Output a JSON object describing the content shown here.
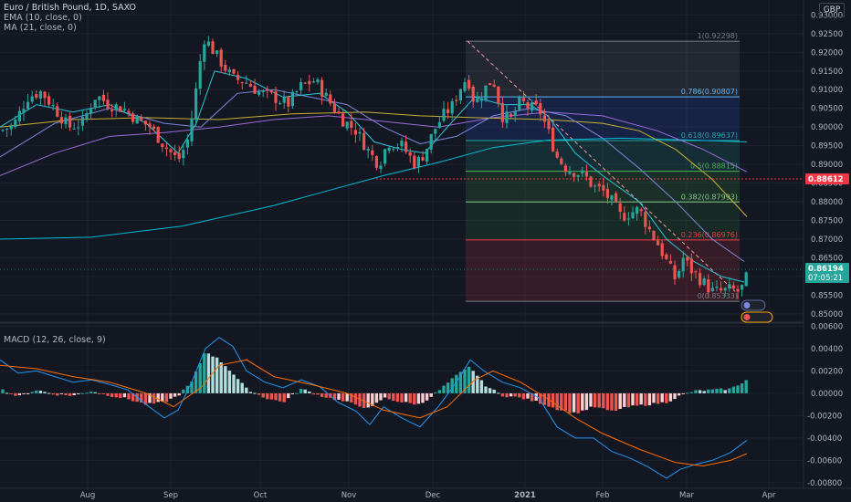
{
  "legend": {
    "title": "Euro / British Pound, 1D, SAXO",
    "ema": "EMA (10, close, 0)",
    "ma": "MA (21, close, 0)",
    "macd": "MACD (12, 26, close, 9)"
  },
  "currency_label": "GBP",
  "price_axis": {
    "ticks": [
      "0.93000",
      "0.92500",
      "0.92000",
      "0.91500",
      "0.91000",
      "0.90500",
      "0.90000",
      "0.89500",
      "0.89000",
      "0.88500",
      "0.88000",
      "0.87500",
      "0.87000",
      "0.86500",
      "0.86000",
      "0.85500",
      "0.85000"
    ],
    "current_price": "0.86194",
    "countdown": "07:05:21",
    "level_tag": "0.88612"
  },
  "macd_axis": {
    "ticks": [
      "0.00600",
      "0.00400",
      "0.00200",
      "0.00000",
      "-0.00200",
      "-0.00400",
      "-0.00600",
      "-0.00800"
    ]
  },
  "time_axis": {
    "ticks": [
      "Aug",
      "Sep",
      "Oct",
      "Nov",
      "Dec",
      "2021",
      "Feb",
      "Mar",
      "Apr"
    ]
  },
  "fib_levels": [
    {
      "label": "1(0.92298)",
      "value": 0.92298,
      "color": "#787b86"
    },
    {
      "label": "0.786(0.90807)",
      "value": 0.90807,
      "color": "#64b5f6"
    },
    {
      "label": "0.618(0.89637)",
      "value": 0.89637,
      "color": "#26a69a"
    },
    {
      "label": "0.5(0.88815)",
      "value": 0.88815,
      "color": "#4caf50"
    },
    {
      "label": "0.382(0.87993)",
      "value": 0.87993,
      "color": "#81c784"
    },
    {
      "label": "0.236(0.86976)",
      "value": 0.86976,
      "color": "#f23645"
    },
    {
      "label": "0(0.85333)",
      "value": 0.85333,
      "color": "#787b86"
    }
  ],
  "colors": {
    "background": "#131722",
    "grid": "#1e222d",
    "up": "#26a69a",
    "down": "#ef5350",
    "ema": "#7b8ae0",
    "ma": "#26c6da",
    "ma_long": "#c9b035",
    "ma_200": "#00bcd4",
    "macd_line": "#2196f3",
    "signal_line": "#ff6d00",
    "hist_up": "#26a69a",
    "hist_up_light": "#b2dfdb",
    "hist_down": "#ef5350",
    "hist_down_light": "#ffcdd2",
    "price_tag": "#26a69a",
    "level_tag": "#f23645"
  },
  "chart_data": {
    "type": "candlestick",
    "symbol": "Euro / British Pound, 1D, SAXO",
    "ylim": [
      0.848,
      0.934
    ],
    "macd_ylim": [
      -0.0085,
      0.0062
    ],
    "price_path": [
      [
        0,
        0.899
      ],
      [
        15,
        0.9005
      ],
      [
        30,
        0.908
      ],
      [
        45,
        0.9095
      ],
      [
        60,
        0.905
      ],
      [
        75,
        0.9
      ],
      [
        90,
        0.901
      ],
      [
        105,
        0.9085
      ],
      [
        120,
        0.906
      ],
      [
        135,
        0.905
      ],
      [
        150,
        0.902
      ],
      [
        165,
        0.9
      ],
      [
        180,
        0.895
      ],
      [
        195,
        0.891
      ],
      [
        205,
        0.896
      ],
      [
        212,
        0.905
      ],
      [
        218,
        0.916
      ],
      [
        224,
        0.924
      ],
      [
        232,
        0.921
      ],
      [
        240,
        0.918
      ],
      [
        255,
        0.913
      ],
      [
        270,
        0.912
      ],
      [
        285,
        0.909
      ],
      [
        300,
        0.908
      ],
      [
        315,
        0.906
      ],
      [
        330,
        0.911
      ],
      [
        345,
        0.9125
      ],
      [
        360,
        0.907
      ],
      [
        375,
        0.902
      ],
      [
        390,
        0.899
      ],
      [
        405,
        0.893
      ],
      [
        415,
        0.89
      ],
      [
        425,
        0.896
      ],
      [
        440,
        0.895
      ],
      [
        455,
        0.89
      ],
      [
        465,
        0.893
      ],
      [
        475,
        0.899
      ],
      [
        485,
        0.903
      ],
      [
        495,
        0.9055
      ],
      [
        505,
        0.911
      ],
      [
        512,
        0.9135
      ],
      [
        520,
        0.906
      ],
      [
        530,
        0.91
      ],
      [
        540,
        0.913
      ],
      [
        550,
        0.903
      ],
      [
        560,
        0.902
      ],
      [
        570,
        0.907
      ],
      [
        580,
        0.905
      ],
      [
        590,
        0.905
      ],
      [
        600,
        0.899
      ],
      [
        610,
        0.892
      ],
      [
        620,
        0.889
      ],
      [
        630,
        0.888
      ],
      [
        640,
        0.887
      ],
      [
        650,
        0.884
      ],
      [
        660,
        0.883
      ],
      [
        670,
        0.88
      ],
      [
        680,
        0.876
      ],
      [
        690,
        0.877
      ],
      [
        700,
        0.878
      ],
      [
        710,
        0.873
      ],
      [
        720,
        0.869
      ],
      [
        730,
        0.864
      ],
      [
        740,
        0.859
      ],
      [
        748,
        0.865
      ],
      [
        756,
        0.862
      ],
      [
        764,
        0.86
      ],
      [
        772,
        0.858
      ],
      [
        780,
        0.856
      ],
      [
        790,
        0.856
      ],
      [
        800,
        0.8565
      ],
      [
        808,
        0.856
      ],
      [
        815,
        0.8575
      ],
      [
        820,
        0.8619
      ]
    ],
    "ema_path": [
      [
        0,
        0.9
      ],
      [
        40,
        0.906
      ],
      [
        80,
        0.904
      ],
      [
        120,
        0.906
      ],
      [
        160,
        0.901
      ],
      [
        195,
        0.893
      ],
      [
        215,
        0.901
      ],
      [
        235,
        0.915
      ],
      [
        270,
        0.913
      ],
      [
        310,
        0.908
      ],
      [
        350,
        0.909
      ],
      [
        380,
        0.904
      ],
      [
        410,
        0.896
      ],
      [
        440,
        0.894
      ],
      [
        465,
        0.893
      ],
      [
        490,
        0.9
      ],
      [
        520,
        0.908
      ],
      [
        550,
        0.906
      ],
      [
        580,
        0.906
      ],
      [
        600,
        0.903
      ],
      [
        630,
        0.893
      ],
      [
        660,
        0.887
      ],
      [
        700,
        0.88
      ],
      [
        730,
        0.87
      ],
      [
        760,
        0.864
      ],
      [
        790,
        0.86
      ],
      [
        815,
        0.8585
      ]
    ],
    "ma21_path": [
      [
        0,
        0.892
      ],
      [
        60,
        0.901
      ],
      [
        120,
        0.905
      ],
      [
        180,
        0.901
      ],
      [
        220,
        0.9
      ],
      [
        260,
        0.909
      ],
      [
        300,
        0.91
      ],
      [
        340,
        0.908
      ],
      [
        380,
        0.906
      ],
      [
        420,
        0.9
      ],
      [
        460,
        0.8955
      ],
      [
        500,
        0.8975
      ],
      [
        540,
        0.903
      ],
      [
        580,
        0.905
      ],
      [
        620,
        0.903
      ],
      [
        660,
        0.897
      ],
      [
        700,
        0.889
      ],
      [
        740,
        0.88
      ],
      [
        780,
        0.87
      ],
      [
        815,
        0.864
      ]
    ],
    "ma_long_path": [
      [
        0,
        0.9
      ],
      [
        80,
        0.902
      ],
      [
        160,
        0.9025
      ],
      [
        240,
        0.902
      ],
      [
        320,
        0.9035
      ],
      [
        400,
        0.904
      ],
      [
        460,
        0.903
      ],
      [
        520,
        0.9025
      ],
      [
        600,
        0.902
      ],
      [
        660,
        0.901
      ],
      [
        700,
        0.899
      ],
      [
        740,
        0.894
      ],
      [
        780,
        0.886
      ],
      [
        818,
        0.876
      ]
    ],
    "ma200_path": [
      [
        0,
        0.87
      ],
      [
        100,
        0.8705
      ],
      [
        200,
        0.8735
      ],
      [
        300,
        0.879
      ],
      [
        360,
        0.883
      ],
      [
        420,
        0.887
      ],
      [
        480,
        0.8905
      ],
      [
        540,
        0.8945
      ],
      [
        600,
        0.8965
      ],
      [
        680,
        0.897
      ],
      [
        760,
        0.8965
      ],
      [
        818,
        0.896
      ]
    ],
    "ema_long_path": [
      [
        0,
        0.887
      ],
      [
        60,
        0.893
      ],
      [
        120,
        0.8975
      ],
      [
        180,
        0.8985
      ],
      [
        240,
        0.9
      ],
      [
        300,
        0.902
      ],
      [
        360,
        0.903
      ],
      [
        420,
        0.9015
      ],
      [
        480,
        0.9
      ],
      [
        540,
        0.9025
      ],
      [
        600,
        0.904
      ],
      [
        660,
        0.903
      ],
      [
        720,
        0.899
      ],
      [
        770,
        0.894
      ],
      [
        818,
        0.888
      ]
    ],
    "macd_path": [
      [
        0,
        0.003
      ],
      [
        20,
        0.0018
      ],
      [
        40,
        0.002
      ],
      [
        60,
        0.0015
      ],
      [
        80,
        0.001
      ],
      [
        100,
        0.0012
      ],
      [
        120,
        0.0008
      ],
      [
        140,
        0.0003
      ],
      [
        160,
        -0.001
      ],
      [
        180,
        -0.0022
      ],
      [
        195,
        -0.0015
      ],
      [
        210,
        0.001
      ],
      [
        225,
        0.004
      ],
      [
        240,
        0.005
      ],
      [
        255,
        0.0042
      ],
      [
        270,
        0.002
      ],
      [
        290,
        0.001
      ],
      [
        310,
        0.0005
      ],
      [
        330,
        0.0012
      ],
      [
        350,
        0.0006
      ],
      [
        370,
        -0.0008
      ],
      [
        390,
        -0.0016
      ],
      [
        405,
        -0.0028
      ],
      [
        420,
        -0.0012
      ],
      [
        440,
        -0.0022
      ],
      [
        460,
        -0.003
      ],
      [
        480,
        -0.0012
      ],
      [
        500,
        0.001
      ],
      [
        515,
        0.003
      ],
      [
        530,
        0.002
      ],
      [
        550,
        0.001
      ],
      [
        570,
        0.0005
      ],
      [
        590,
        -0.0004
      ],
      [
        610,
        -0.003
      ],
      [
        630,
        -0.004
      ],
      [
        650,
        -0.004
      ],
      [
        670,
        -0.0052
      ],
      [
        690,
        -0.0058
      ],
      [
        710,
        -0.0066
      ],
      [
        730,
        -0.0076
      ],
      [
        745,
        -0.0068
      ],
      [
        760,
        -0.0064
      ],
      [
        780,
        -0.006
      ],
      [
        800,
        -0.0053
      ],
      [
        818,
        -0.0042
      ]
    ],
    "signal_path": [
      [
        0,
        0.0025
      ],
      [
        40,
        0.0022
      ],
      [
        80,
        0.0015
      ],
      [
        120,
        0.001
      ],
      [
        160,
        0.0
      ],
      [
        190,
        -0.0012
      ],
      [
        220,
        0.0005
      ],
      [
        240,
        0.0025
      ],
      [
        270,
        0.003
      ],
      [
        300,
        0.0015
      ],
      [
        340,
        0.0008
      ],
      [
        380,
        0.0
      ],
      [
        420,
        -0.0015
      ],
      [
        460,
        -0.0022
      ],
      [
        490,
        -0.0012
      ],
      [
        520,
        0.0012
      ],
      [
        540,
        0.002
      ],
      [
        570,
        0.001
      ],
      [
        600,
        -0.0005
      ],
      [
        630,
        -0.0022
      ],
      [
        660,
        -0.0036
      ],
      [
        700,
        -0.005
      ],
      [
        740,
        -0.0062
      ],
      [
        770,
        -0.0065
      ],
      [
        800,
        -0.006
      ],
      [
        818,
        -0.0054
      ]
    ],
    "hist_path": [
      [
        0,
        0.0004
      ],
      [
        20,
        -0.0003
      ],
      [
        40,
        0.0003
      ],
      [
        60,
        -0.0001
      ],
      [
        80,
        -0.0002
      ],
      [
        100,
        0.0002
      ],
      [
        120,
        -0.0002
      ],
      [
        140,
        -0.0005
      ],
      [
        160,
        -0.001
      ],
      [
        180,
        -0.0008
      ],
      [
        195,
        -0.0002
      ],
      [
        210,
        0.001
      ],
      [
        225,
        0.0038
      ],
      [
        240,
        0.003
      ],
      [
        255,
        0.0018
      ],
      [
        270,
        0.0004
      ],
      [
        290,
        -0.0004
      ],
      [
        310,
        -0.0008
      ],
      [
        330,
        0.0004
      ],
      [
        350,
        -0.0002
      ],
      [
        370,
        -0.0006
      ],
      [
        390,
        -0.001
      ],
      [
        405,
        -0.0014
      ],
      [
        420,
        -0.0004
      ],
      [
        440,
        -0.0008
      ],
      [
        460,
        -0.001
      ],
      [
        480,
        0.0002
      ],
      [
        500,
        0.0016
      ],
      [
        515,
        0.0024
      ],
      [
        530,
        0.0008
      ],
      [
        550,
        -0.0002
      ],
      [
        570,
        -0.0004
      ],
      [
        590,
        -0.0008
      ],
      [
        610,
        -0.0014
      ],
      [
        630,
        -0.0018
      ],
      [
        650,
        -0.0012
      ],
      [
        670,
        -0.0016
      ],
      [
        690,
        -0.0012
      ],
      [
        710,
        -0.001
      ],
      [
        730,
        -0.0008
      ],
      [
        745,
        -0.0002
      ],
      [
        760,
        0.0002
      ],
      [
        780,
        0.0003
      ],
      [
        800,
        0.0004
      ],
      [
        818,
        0.0012
      ]
    ]
  }
}
